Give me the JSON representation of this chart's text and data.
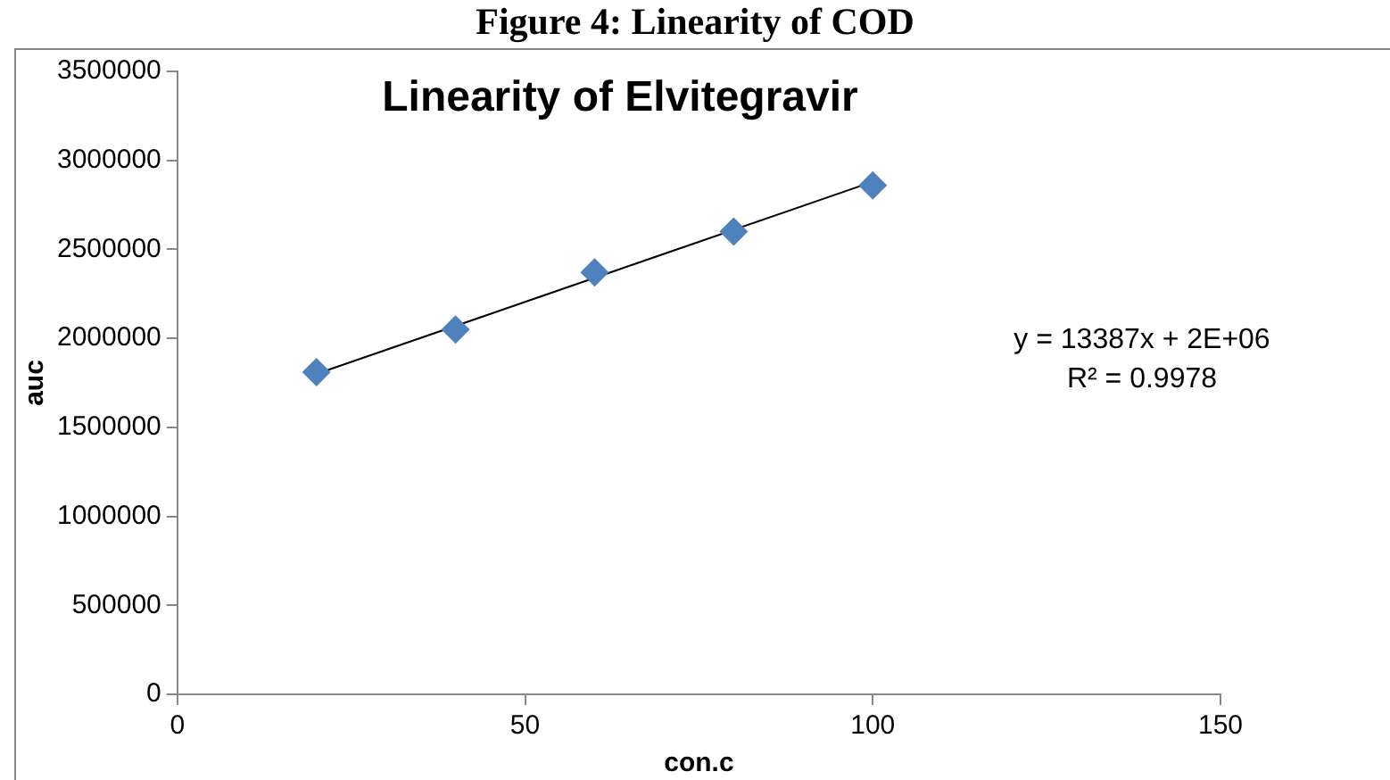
{
  "chart_data": {
    "type": "scatter",
    "title": "Linearity of Elvitegravir",
    "xlabel": "con.c",
    "ylabel": "auc",
    "annotations": [
      "Figure 4: Linearity of COD",
      "y = 13387x + 2E+06",
      "R² = 0.9978"
    ],
    "x": [
      20,
      40,
      60,
      80,
      100
    ],
    "series": [
      {
        "color": "#4f81bd",
        "values": [
          1810000,
          2050000,
          2370000,
          2600000,
          2860000
        ],
        "marker": "diamond"
      },
      {
        "type": "line",
        "color": "#000000",
        "x": [
          20,
          100
        ],
        "values": [
          1800000,
          2880000
        ],
        "marker": "none"
      }
    ],
    "xlim": [
      0,
      150
    ],
    "xticks": [
      0,
      50,
      100,
      150
    ],
    "ylim": [
      0,
      3500000
    ],
    "yticks": [
      0,
      500000,
      1000000,
      1500000,
      2000000,
      2500000,
      3000000,
      3500000
    ],
    "grid": false,
    "legend": false
  }
}
